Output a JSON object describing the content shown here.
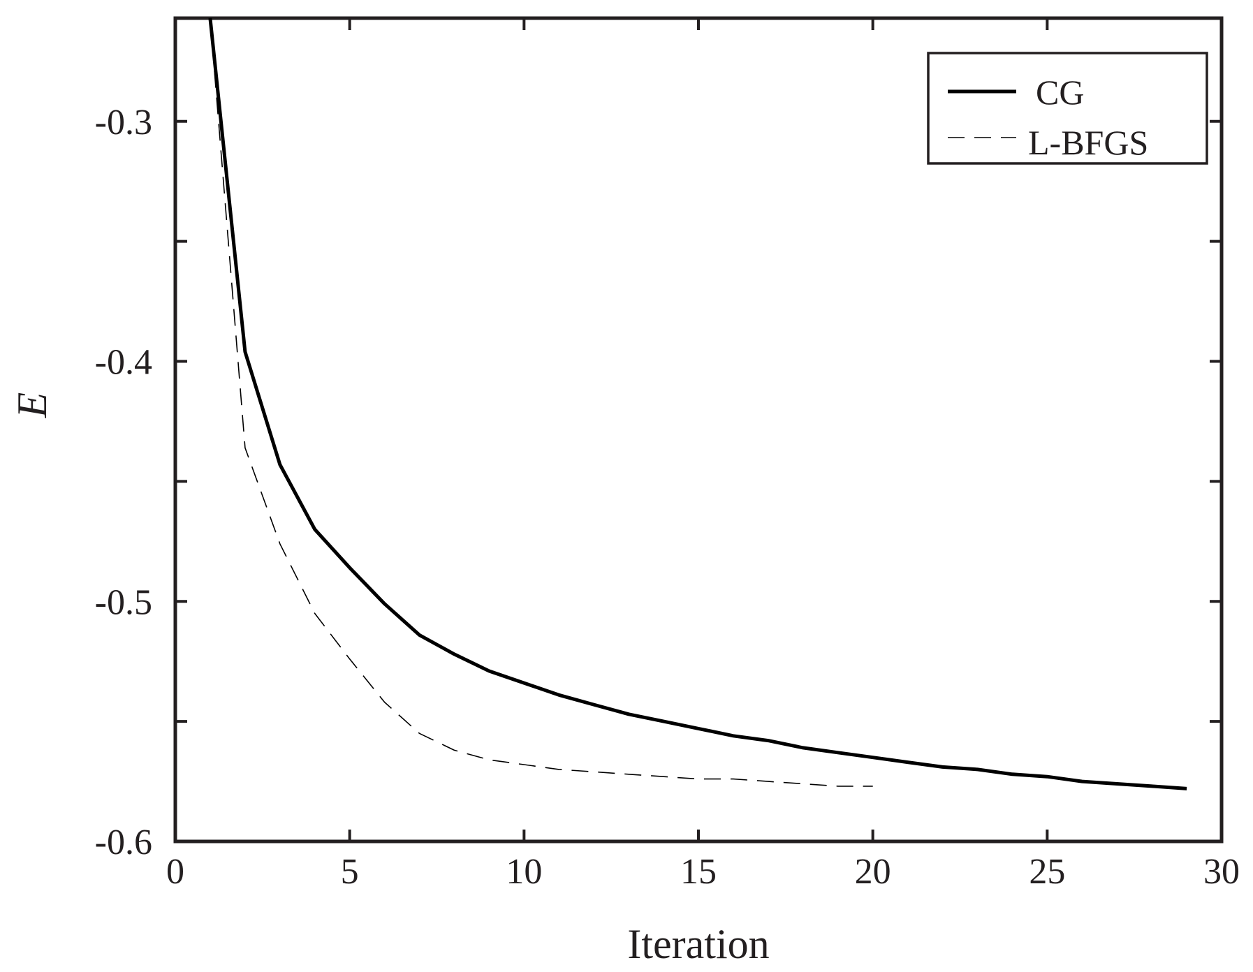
{
  "chart_data": {
    "type": "line",
    "xlabel": "Iteration",
    "ylabel": "E",
    "xlim": [
      0,
      30
    ],
    "ylim": [
      -0.6,
      -0.257
    ],
    "xticks": [
      0,
      5,
      10,
      15,
      20,
      25,
      30
    ],
    "xtick_labels": [
      "0",
      "5",
      "10",
      "15",
      "20",
      "25",
      "30"
    ],
    "yticks": [
      -0.6,
      -0.5,
      -0.4,
      -0.3
    ],
    "ytick_labels": [
      "-0.6",
      "-0.5",
      "-0.4",
      "-0.3"
    ],
    "grid": false,
    "legend_position": "top-right",
    "series": [
      {
        "name": "CG",
        "style": "solid",
        "color": "#000000",
        "x": [
          1,
          2,
          3,
          4,
          5,
          6,
          7,
          8,
          9,
          10,
          11,
          12,
          13,
          14,
          15,
          16,
          17,
          18,
          19,
          20,
          21,
          22,
          23,
          24,
          25,
          26,
          27,
          28,
          29
        ],
        "y": [
          -0.257,
          -0.396,
          -0.443,
          -0.47,
          -0.486,
          -0.501,
          -0.514,
          -0.522,
          -0.529,
          -0.534,
          -0.539,
          -0.543,
          -0.547,
          -0.55,
          -0.553,
          -0.556,
          -0.558,
          -0.561,
          -0.563,
          -0.565,
          -0.567,
          -0.569,
          -0.57,
          -0.572,
          -0.573,
          -0.575,
          -0.576,
          -0.577,
          -0.578
        ]
      },
      {
        "name": "L-BFGS",
        "style": "dashed",
        "color": "#000000",
        "x": [
          1,
          2,
          3,
          4,
          5,
          6,
          7,
          8,
          9,
          10,
          11,
          12,
          13,
          14,
          15,
          16,
          17,
          18,
          19,
          20
        ],
        "y": [
          -0.257,
          -0.436,
          -0.476,
          -0.505,
          -0.524,
          -0.542,
          -0.555,
          -0.562,
          -0.566,
          -0.568,
          -0.57,
          -0.571,
          -0.572,
          -0.573,
          -0.574,
          -0.574,
          -0.575,
          -0.576,
          -0.577,
          -0.577
        ]
      }
    ]
  }
}
